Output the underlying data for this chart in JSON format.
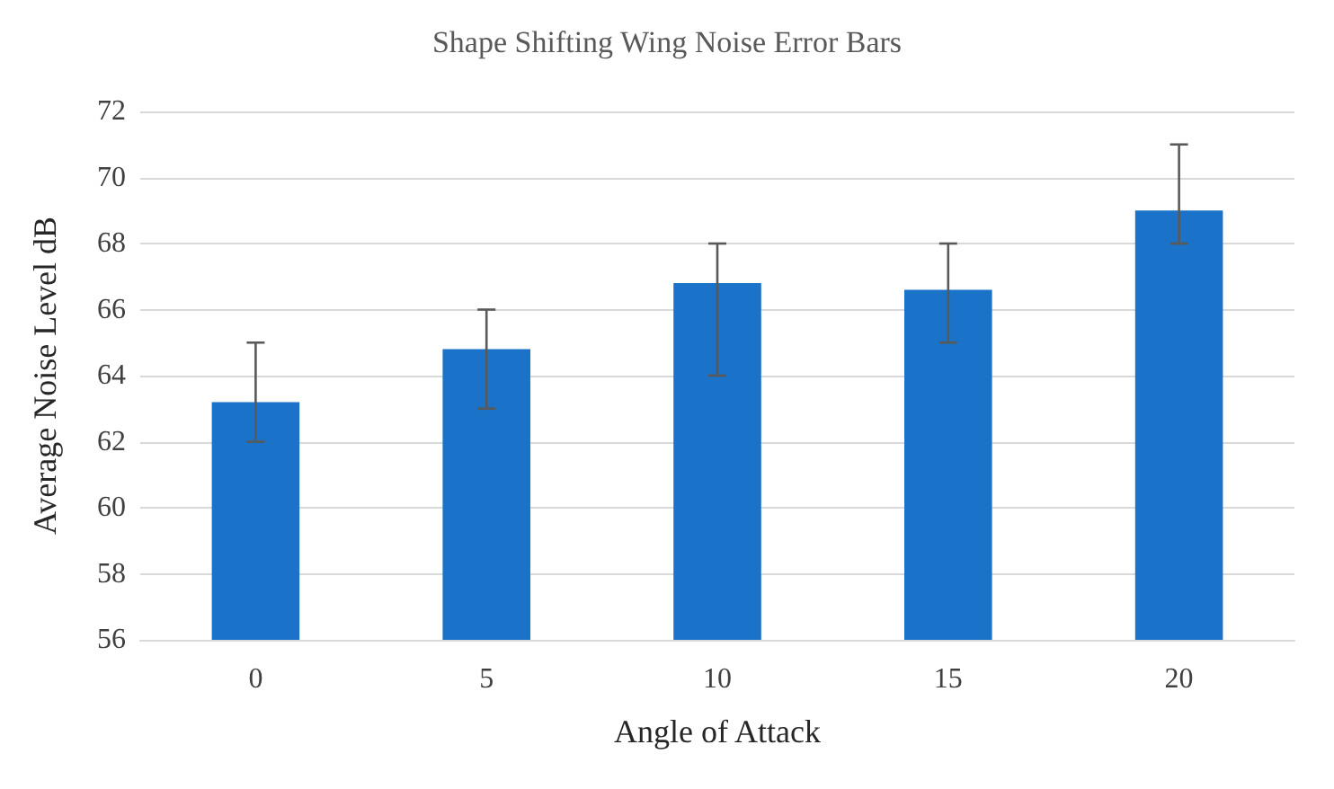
{
  "chart_data": {
    "type": "bar",
    "title": "Shape Shifting Wing Noise Error Bars",
    "xlabel": "Angle of Attack",
    "ylabel": "Average Noise Level dB",
    "categories": [
      "0",
      "5",
      "10",
      "15",
      "20"
    ],
    "values": [
      63.2,
      64.8,
      66.8,
      66.6,
      69.0
    ],
    "errors": [
      [
        62,
        65
      ],
      [
        63,
        66
      ],
      [
        64,
        68
      ],
      [
        65,
        68
      ],
      [
        68,
        71
      ]
    ],
    "color": "#1a73c9",
    "ylim": [
      56,
      72
    ],
    "yticks": [
      56,
      58,
      60,
      62,
      64,
      66,
      68,
      70,
      72
    ],
    "grid": "y"
  }
}
